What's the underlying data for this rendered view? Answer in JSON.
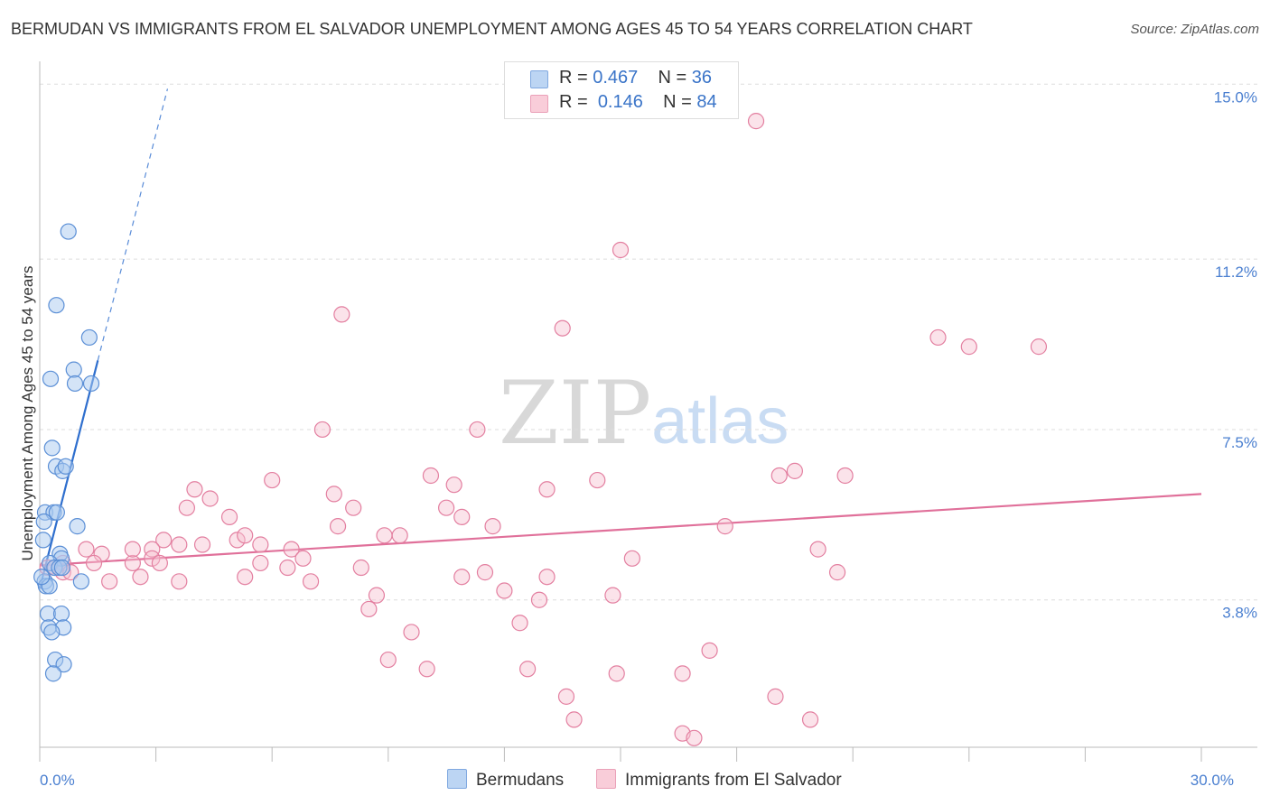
{
  "title": "BERMUDAN VS IMMIGRANTS FROM EL SALVADOR UNEMPLOYMENT AMONG AGES 45 TO 54 YEARS CORRELATION CHART",
  "source": "Source: ZipAtlas.com",
  "watermark": {
    "zip": "ZIP",
    "atlas": "atlas"
  },
  "legend": {
    "series1": {
      "r_label": "R =",
      "r_value": "0.467",
      "n_label": "N =",
      "n_value": "36"
    },
    "series2": {
      "r_label": "R =",
      "r_value": "0.146",
      "n_label": "N =",
      "n_value": "84"
    }
  },
  "bottom_legend": {
    "series1": "Bermudans",
    "series2": "Immigrants from El Salvador"
  },
  "colors": {
    "blue_fill": "#a9c9f0",
    "blue_stroke": "#5b8fd6",
    "blue_line": "#2f6fce",
    "pink_fill": "#f7c0d0",
    "pink_stroke": "#e37fa0",
    "pink_line": "#e0709a",
    "grid": "#dddddd",
    "tick_text": "#4a7fd0"
  },
  "chart_data": {
    "type": "scatter",
    "title": "BERMUDAN VS IMMIGRANTS FROM EL SALVADOR UNEMPLOYMENT AMONG AGES 45 TO 54 YEARS CORRELATION CHART",
    "xlabel": "",
    "ylabel": "Unemployment Among Ages 45 to 54 years",
    "xlim": [
      0,
      30
    ],
    "ylim": [
      0.6,
      15.3
    ],
    "x_tick_labels": [
      {
        "value": 0,
        "label": "0.0%"
      },
      {
        "value": 30,
        "label": "30.0%"
      }
    ],
    "y_ticks": [
      {
        "value": 3.8,
        "label": "3.8%"
      },
      {
        "value": 7.5,
        "label": "7.5%"
      },
      {
        "value": 11.2,
        "label": "11.2%"
      },
      {
        "value": 15.0,
        "label": "15.0%"
      }
    ],
    "x_minor_ticks": [
      0,
      3,
      6,
      9,
      12,
      15,
      18,
      21,
      24,
      27,
      30
    ],
    "grid": true,
    "series": [
      {
        "name": "Bermudans",
        "r": 0.467,
        "n": 36,
        "points": [
          [
            0.74,
            11.8
          ],
          [
            0.43,
            10.2
          ],
          [
            1.28,
            9.5
          ],
          [
            0.88,
            8.8
          ],
          [
            0.28,
            8.6
          ],
          [
            0.91,
            8.5
          ],
          [
            1.33,
            8.5
          ],
          [
            0.32,
            7.1
          ],
          [
            0.42,
            6.7
          ],
          [
            0.59,
            6.6
          ],
          [
            0.67,
            6.7
          ],
          [
            0.14,
            5.7
          ],
          [
            0.36,
            5.7
          ],
          [
            0.44,
            5.7
          ],
          [
            0.97,
            5.4
          ],
          [
            0.11,
            5.5
          ],
          [
            0.09,
            5.1
          ],
          [
            0.52,
            4.8
          ],
          [
            0.56,
            4.7
          ],
          [
            0.26,
            4.6
          ],
          [
            0.38,
            4.5
          ],
          [
            0.5,
            4.5
          ],
          [
            0.58,
            4.5
          ],
          [
            0.13,
            4.2
          ],
          [
            0.16,
            4.1
          ],
          [
            0.25,
            4.1
          ],
          [
            1.07,
            4.2
          ],
          [
            0.21,
            3.5
          ],
          [
            0.56,
            3.5
          ],
          [
            0.23,
            3.2
          ],
          [
            0.61,
            3.2
          ],
          [
            0.31,
            3.1
          ],
          [
            0.4,
            2.5
          ],
          [
            0.62,
            2.4
          ],
          [
            0.35,
            2.2
          ],
          [
            0.05,
            4.3
          ]
        ],
        "trend": {
          "x0": 0.0,
          "y0": 4.05,
          "x1": 1.5,
          "y1": 9.0,
          "dash_to_x": 3.3,
          "dash_to_y": 14.9
        }
      },
      {
        "name": "Immigrants from El Salvador",
        "r": 0.146,
        "n": 84,
        "points": [
          [
            18.5,
            14.2
          ],
          [
            15.0,
            11.4
          ],
          [
            7.8,
            10.0
          ],
          [
            13.5,
            9.7
          ],
          [
            23.2,
            9.5
          ],
          [
            24.0,
            9.3
          ],
          [
            25.8,
            9.3
          ],
          [
            7.3,
            7.5
          ],
          [
            11.3,
            7.5
          ],
          [
            6.0,
            6.4
          ],
          [
            10.1,
            6.5
          ],
          [
            10.7,
            6.3
          ],
          [
            13.1,
            6.2
          ],
          [
            14.4,
            6.4
          ],
          [
            19.1,
            6.5
          ],
          [
            19.5,
            6.6
          ],
          [
            20.8,
            6.5
          ],
          [
            4.0,
            6.2
          ],
          [
            7.6,
            6.1
          ],
          [
            4.4,
            6.0
          ],
          [
            3.8,
            5.8
          ],
          [
            8.1,
            5.8
          ],
          [
            10.5,
            5.8
          ],
          [
            4.9,
            5.6
          ],
          [
            10.9,
            5.6
          ],
          [
            7.7,
            5.4
          ],
          [
            11.7,
            5.4
          ],
          [
            17.7,
            5.4
          ],
          [
            3.2,
            5.1
          ],
          [
            5.1,
            5.1
          ],
          [
            5.3,
            5.2
          ],
          [
            8.9,
            5.2
          ],
          [
            9.3,
            5.2
          ],
          [
            2.9,
            4.9
          ],
          [
            4.2,
            5.0
          ],
          [
            5.7,
            5.0
          ],
          [
            6.5,
            4.9
          ],
          [
            20.1,
            4.9
          ],
          [
            1.2,
            4.9
          ],
          [
            1.6,
            4.8
          ],
          [
            2.9,
            4.7
          ],
          [
            6.8,
            4.7
          ],
          [
            15.3,
            4.7
          ],
          [
            0.6,
            4.6
          ],
          [
            1.4,
            4.6
          ],
          [
            2.4,
            4.6
          ],
          [
            3.1,
            4.6
          ],
          [
            5.7,
            4.6
          ],
          [
            0.2,
            4.5
          ],
          [
            0.4,
            4.5
          ],
          [
            0.6,
            4.4
          ],
          [
            0.8,
            4.4
          ],
          [
            6.4,
            4.5
          ],
          [
            8.3,
            4.5
          ],
          [
            11.5,
            4.4
          ],
          [
            1.8,
            4.2
          ],
          [
            2.6,
            4.3
          ],
          [
            3.6,
            4.2
          ],
          [
            5.3,
            4.3
          ],
          [
            7.0,
            4.2
          ],
          [
            10.9,
            4.3
          ],
          [
            13.1,
            4.3
          ],
          [
            20.6,
            4.4
          ],
          [
            12.0,
            4.0
          ],
          [
            8.7,
            3.9
          ],
          [
            14.8,
            3.9
          ],
          [
            12.9,
            3.8
          ],
          [
            8.5,
            3.6
          ],
          [
            12.4,
            3.3
          ],
          [
            9.6,
            3.1
          ],
          [
            17.3,
            2.7
          ],
          [
            9.0,
            2.5
          ],
          [
            10.0,
            2.3
          ],
          [
            12.6,
            2.3
          ],
          [
            14.9,
            2.2
          ],
          [
            16.6,
            2.2
          ],
          [
            13.6,
            1.7
          ],
          [
            19.0,
            1.7
          ],
          [
            13.8,
            1.2
          ],
          [
            19.9,
            1.2
          ],
          [
            16.6,
            0.9
          ],
          [
            16.9,
            0.8
          ],
          [
            3.6,
            5.0
          ],
          [
            2.4,
            4.9
          ]
        ],
        "trend": {
          "x0": 0.0,
          "y0": 4.55,
          "x1": 30.0,
          "y1": 6.1
        }
      }
    ]
  }
}
